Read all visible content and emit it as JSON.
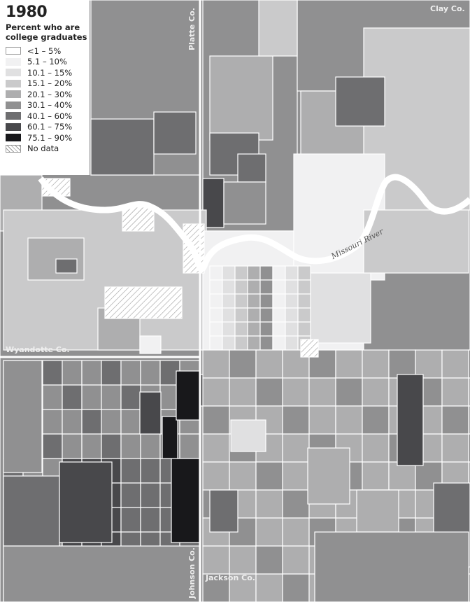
{
  "legend": {
    "year": "1980",
    "subtitle": "Percent who are college graduates",
    "classes": [
      {
        "label": "<1 – 5%",
        "color": "#ffffff"
      },
      {
        "label": "5.1 – 10%",
        "color": "#f1f1f2"
      },
      {
        "label": "10.1 – 15%",
        "color": "#e0e0e1"
      },
      {
        "label": "15.1 – 20%",
        "color": "#cacacb"
      },
      {
        "label": "20.1 – 30%",
        "color": "#aeaeaf"
      },
      {
        "label": "30.1 – 40%",
        "color": "#909091"
      },
      {
        "label": "40.1 – 60%",
        "color": "#6e6e70"
      },
      {
        "label": "60.1 – 75%",
        "color": "#48484b"
      },
      {
        "label": "75.1 – 90%",
        "color": "#18181b"
      },
      {
        "label": "No data",
        "color": "hatched"
      }
    ]
  },
  "labels": {
    "clay": "Clay Co.",
    "platte": "Platte Co.",
    "wyandotte": "Wyandotte Co.",
    "johnson": "Johnson Co.",
    "jackson": "Jackson Co.",
    "river": "Missouri River"
  }
}
